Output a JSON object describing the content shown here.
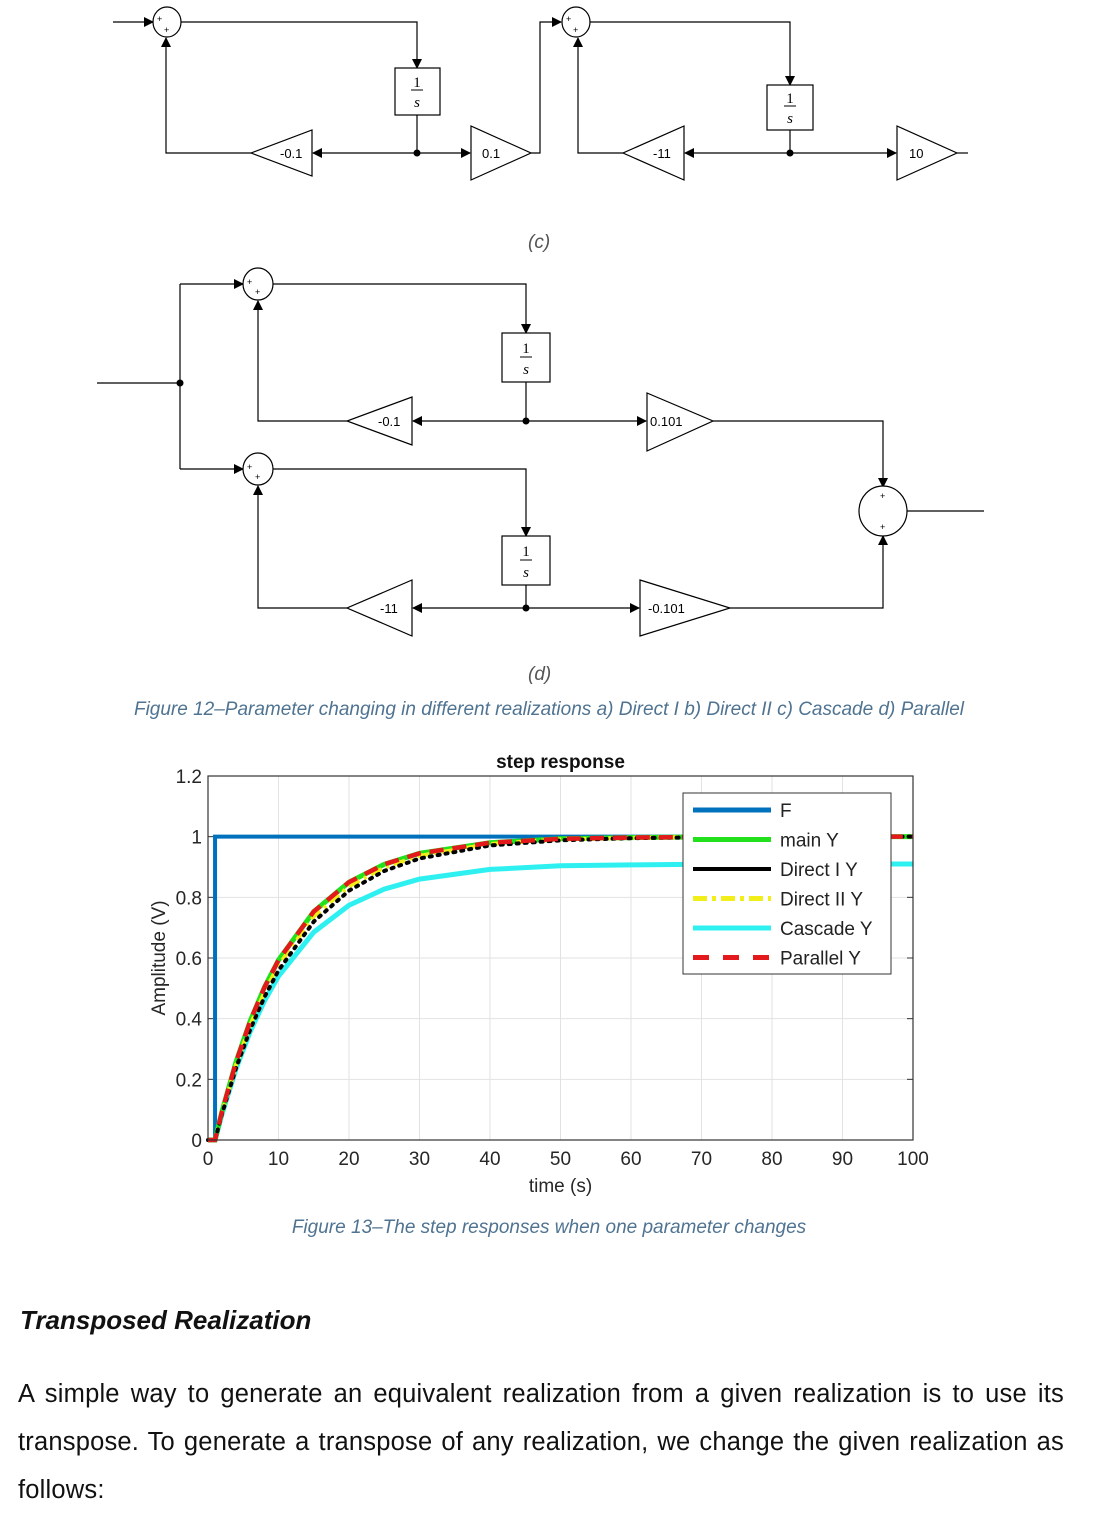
{
  "figure12": {
    "panel_c": {
      "label": "(c)",
      "sum_signs": [
        "+",
        "+"
      ],
      "integrator": {
        "num": "1",
        "den": "s"
      },
      "gains": [
        "-0.1",
        "0.1",
        "-11",
        "10"
      ]
    },
    "panel_d": {
      "label": "(d)",
      "sum_signs": [
        "+",
        "+"
      ],
      "output_sum_signs": [
        "+",
        "+"
      ],
      "integrator": {
        "num": "1",
        "den": "s"
      },
      "gains": [
        "-0.1",
        "0.101",
        "-11",
        "-0.101"
      ]
    },
    "caption": "Figure 12–Parameter changing in different realizations a) Direct I b) Direct II c) Cascade d) Parallel"
  },
  "chart_data": {
    "type": "line",
    "title": "step response",
    "xlabel": "time (s)",
    "ylabel": "Amplitude (V)",
    "xlim": [
      0,
      100
    ],
    "ylim": [
      0,
      1.2
    ],
    "xticks": [
      "0",
      "10",
      "20",
      "30",
      "40",
      "50",
      "60",
      "70",
      "80",
      "90",
      "100"
    ],
    "yticks": [
      "0",
      "0.2",
      "0.4",
      "0.6",
      "0.8",
      "1",
      "1.2"
    ],
    "grid": true,
    "legend_position": "top-right",
    "series": [
      {
        "name": "F",
        "color": "#0072BD",
        "style": "solid",
        "x": [
          0,
          1,
          1,
          100
        ],
        "y": [
          0,
          0,
          1,
          1
        ]
      },
      {
        "name": "main Y",
        "color": "#22e01c",
        "style": "solid",
        "x": [
          0,
          1,
          2,
          4,
          6,
          8,
          10,
          15,
          20,
          25,
          30,
          40,
          50,
          60,
          70,
          80,
          90,
          100
        ],
        "y": [
          0,
          0,
          0.095,
          0.259,
          0.393,
          0.503,
          0.593,
          0.753,
          0.85,
          0.909,
          0.945,
          0.98,
          0.993,
          0.997,
          0.999,
          1,
          1,
          1
        ]
      },
      {
        "name": "Direct I Y",
        "color": "#000000",
        "style": "dotted",
        "x": [
          0,
          1,
          2,
          4,
          6,
          8,
          10,
          15,
          20,
          25,
          30,
          40,
          50,
          60,
          70,
          80,
          90,
          100
        ],
        "y": [
          0,
          0,
          0.087,
          0.239,
          0.365,
          0.471,
          0.559,
          0.72,
          0.822,
          0.887,
          0.928,
          0.971,
          0.988,
          0.995,
          0.998,
          0.999,
          1,
          1
        ]
      },
      {
        "name": "Direct II Y",
        "color": "#f2ee1a",
        "style": "dashdot",
        "x": [
          0,
          1,
          2,
          4,
          6,
          8,
          10,
          15,
          20,
          25,
          30,
          40,
          50,
          60,
          70,
          80,
          90,
          100
        ],
        "y": [
          0,
          0,
          0.091,
          0.249,
          0.379,
          0.487,
          0.576,
          0.737,
          0.836,
          0.898,
          0.937,
          0.976,
          0.991,
          0.996,
          0.999,
          1,
          1,
          1
        ]
      },
      {
        "name": "Cascade Y",
        "color": "#2ef0f0",
        "style": "solid",
        "x": [
          0,
          1,
          2,
          4,
          6,
          8,
          10,
          15,
          20,
          25,
          30,
          40,
          50,
          60,
          70,
          80,
          90,
          100
        ],
        "y": [
          0,
          0,
          0.086,
          0.236,
          0.358,
          0.458,
          0.54,
          0.685,
          0.774,
          0.827,
          0.86,
          0.892,
          0.904,
          0.907,
          0.909,
          0.91,
          0.91,
          0.91
        ]
      },
      {
        "name": "Parallel Y",
        "color": "#e3191c",
        "style": "dashed",
        "x": [
          0,
          1,
          2,
          4,
          6,
          8,
          10,
          15,
          20,
          25,
          30,
          40,
          50,
          60,
          70,
          80,
          90,
          100
        ],
        "y": [
          0,
          0,
          0.095,
          0.259,
          0.393,
          0.503,
          0.593,
          0.753,
          0.85,
          0.909,
          0.945,
          0.98,
          0.993,
          0.997,
          0.999,
          1,
          1,
          1
        ]
      }
    ]
  },
  "figure13": {
    "caption": "Figure 13–The step responses when one parameter changes"
  },
  "section": {
    "heading": "Transposed Realization",
    "paragraph": "A simple way to generate an equivalent realization from a given realization is to use its transpose. To generate a transpose of any realization, we change the given realization as follows:"
  }
}
